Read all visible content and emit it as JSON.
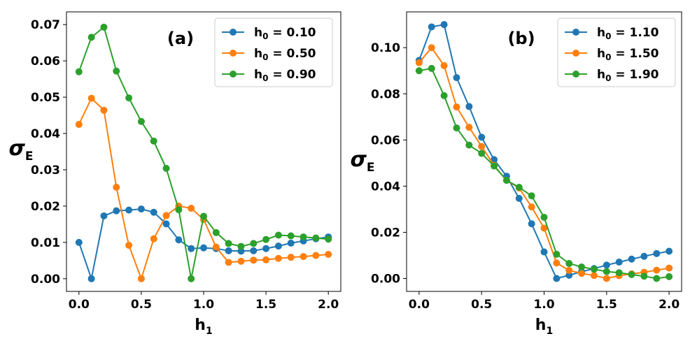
{
  "chart_data": [
    {
      "type": "line",
      "title": "",
      "panel_label": "(a)",
      "xlabel": "h",
      "xlabel_sub": "1",
      "ylabel": "σ",
      "ylabel_sub": "E",
      "xlim": [
        -0.1,
        2.1
      ],
      "ylim": [
        -0.0035,
        0.0735
      ],
      "xticks": [
        0.0,
        0.5,
        1.0,
        1.5,
        2.0
      ],
      "xtick_labels": [
        "0.0",
        "0.5",
        "1.0",
        "1.5",
        "2.0"
      ],
      "yticks": [
        0.0,
        0.01,
        0.02,
        0.03,
        0.04,
        0.05,
        0.06,
        0.07
      ],
      "ytick_labels": [
        "0.00",
        "0.01",
        "0.02",
        "0.03",
        "0.04",
        "0.05",
        "0.06",
        "0.07"
      ],
      "grid": false,
      "legend_position": "top-right",
      "x": [
        0.0,
        0.1,
        0.2,
        0.3,
        0.4,
        0.5,
        0.6,
        0.7,
        0.8,
        0.9,
        1.0,
        1.1,
        1.2,
        1.3,
        1.4,
        1.5,
        1.6,
        1.7,
        1.8,
        1.9,
        2.0
      ],
      "series": [
        {
          "legend_base": "h",
          "legend_sub": "0",
          "legend_value": " = 0.10",
          "color": "#1f77b4",
          "values": [
            0.01,
            0.0,
            0.0173,
            0.0187,
            0.0189,
            0.0192,
            0.0183,
            0.0151,
            0.0107,
            0.0083,
            0.0085,
            0.0083,
            0.0077,
            0.0076,
            0.0077,
            0.0083,
            0.009,
            0.0098,
            0.0104,
            0.011,
            0.0115
          ]
        },
        {
          "legend_base": "h",
          "legend_sub": "0",
          "legend_value": " = 0.50",
          "color": "#ff7f0e",
          "values": [
            0.0425,
            0.0497,
            0.0464,
            0.0252,
            0.0092,
            0.0,
            0.011,
            0.0174,
            0.02,
            0.0194,
            0.0163,
            0.0087,
            0.0045,
            0.0048,
            0.0051,
            0.0052,
            0.0056,
            0.0059,
            0.0061,
            0.0064,
            0.0067
          ]
        },
        {
          "legend_base": "h",
          "legend_sub": "0",
          "legend_value": " = 0.90",
          "color": "#2ca02c",
          "values": [
            0.057,
            0.0665,
            0.0693,
            0.0572,
            0.0498,
            0.0433,
            0.0379,
            0.0304,
            0.019,
            0.0,
            0.0172,
            0.0127,
            0.0097,
            0.0089,
            0.0097,
            0.0108,
            0.012,
            0.0118,
            0.0115,
            0.0112,
            0.0109
          ]
        }
      ]
    },
    {
      "type": "line",
      "title": "",
      "panel_label": "(b)",
      "xlabel": "h",
      "xlabel_sub": "1",
      "ylabel": "σ",
      "ylabel_sub": "E",
      "xlim": [
        -0.1,
        2.1
      ],
      "ylim": [
        -0.0056,
        0.1155
      ],
      "xticks": [
        0.0,
        0.5,
        1.0,
        1.5,
        2.0
      ],
      "xtick_labels": [
        "0.0",
        "0.5",
        "1.0",
        "1.5",
        "2.0"
      ],
      "yticks": [
        0.0,
        0.02,
        0.04,
        0.06,
        0.08,
        0.1
      ],
      "ytick_labels": [
        "0.00",
        "0.02",
        "0.04",
        "0.06",
        "0.08",
        "0.10"
      ],
      "grid": false,
      "legend_position": "top-right",
      "x": [
        0.0,
        0.1,
        0.2,
        0.3,
        0.4,
        0.5,
        0.6,
        0.7,
        0.8,
        0.9,
        1.0,
        1.1,
        1.2,
        1.3,
        1.4,
        1.5,
        1.6,
        1.7,
        1.8,
        1.9,
        2.0
      ],
      "series": [
        {
          "legend_base": "h",
          "legend_sub": "0",
          "legend_value": " = 1.10",
          "color": "#1f77b4",
          "values": [
            0.0945,
            0.109,
            0.11,
            0.087,
            0.0745,
            0.0612,
            0.0515,
            0.0443,
            0.0347,
            0.0237,
            0.0115,
            0.0,
            0.0014,
            0.0029,
            0.0043,
            0.0058,
            0.0071,
            0.0084,
            0.0096,
            0.0108,
            0.0118
          ]
        },
        {
          "legend_base": "h",
          "legend_sub": "0",
          "legend_value": " = 1.50",
          "color": "#ff7f0e",
          "values": [
            0.0935,
            0.1,
            0.0922,
            0.0743,
            0.0655,
            0.0572,
            0.049,
            0.0425,
            0.0392,
            0.031,
            0.0218,
            0.0067,
            0.0035,
            0.0022,
            0.0013,
            0.0,
            0.0012,
            0.002,
            0.0027,
            0.0036,
            0.0045
          ]
        },
        {
          "legend_base": "h",
          "legend_sub": "0",
          "legend_value": " = 1.90",
          "color": "#2ca02c",
          "values": [
            0.09,
            0.091,
            0.0792,
            0.0652,
            0.0578,
            0.0542,
            0.0487,
            0.0425,
            0.0395,
            0.0358,
            0.0265,
            0.0105,
            0.0065,
            0.005,
            0.004,
            0.003,
            0.0025,
            0.0017,
            0.001,
            0.0,
            0.0008
          ]
        }
      ]
    }
  ]
}
